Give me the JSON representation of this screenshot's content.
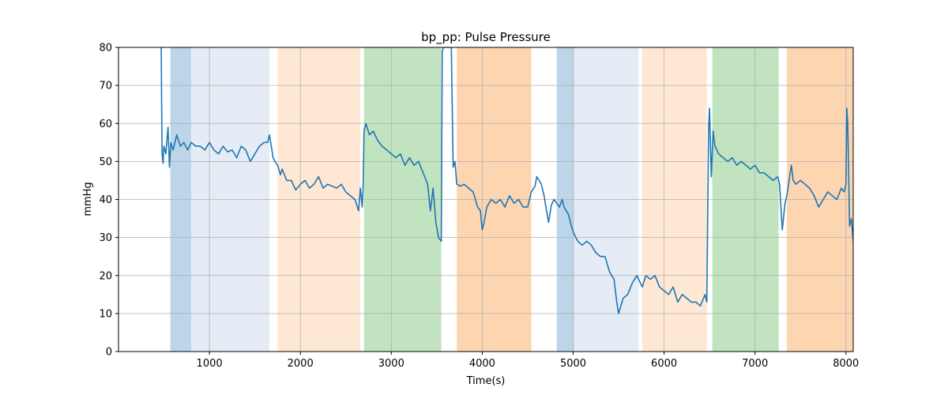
{
  "chart_data": {
    "type": "line",
    "title": "bp_pp: Pulse Pressure",
    "xlabel": "Time(s)",
    "ylabel": "mmHg",
    "xlim": [
      0,
      8080
    ],
    "ylim": [
      0,
      80
    ],
    "xticks": [
      1000,
      2000,
      3000,
      4000,
      5000,
      6000,
      7000,
      8000
    ],
    "yticks": [
      0,
      10,
      20,
      30,
      40,
      50,
      60,
      70,
      80
    ],
    "grid": true,
    "colors": {
      "line": "#1f77b4",
      "grid": "#b0b0b0",
      "band_dark_blue": "#bcd5e9",
      "band_light_blue": "#e5ecf6",
      "band_light_orange": "#fee8d3",
      "band_green": "#c1e3bf",
      "band_orange": "#fdd5b0"
    },
    "bands": [
      {
        "x0": 570,
        "x1": 800,
        "color": "band_dark_blue"
      },
      {
        "x0": 800,
        "x1": 1660,
        "color": "band_light_blue"
      },
      {
        "x0": 1750,
        "x1": 2660,
        "color": "band_light_orange"
      },
      {
        "x0": 2700,
        "x1": 3550,
        "color": "band_green"
      },
      {
        "x0": 3720,
        "x1": 4540,
        "color": "band_orange"
      },
      {
        "x0": 4820,
        "x1": 5010,
        "color": "band_dark_blue"
      },
      {
        "x0": 5010,
        "x1": 5720,
        "color": "band_light_blue"
      },
      {
        "x0": 5760,
        "x1": 6470,
        "color": "band_light_orange"
      },
      {
        "x0": 6530,
        "x1": 7260,
        "color": "band_green"
      },
      {
        "x0": 7350,
        "x1": 8080,
        "color": "band_orange"
      }
    ],
    "series": [
      {
        "values": [
          [
            470,
            80
          ],
          [
            475,
            62
          ],
          [
            480,
            52
          ],
          [
            490,
            49.5
          ],
          [
            500,
            54
          ],
          [
            520,
            52
          ],
          [
            545,
            59
          ],
          [
            560,
            48.5
          ],
          [
            575,
            55
          ],
          [
            600,
            53
          ],
          [
            640,
            57
          ],
          [
            680,
            54
          ],
          [
            720,
            55
          ],
          [
            760,
            53
          ],
          [
            800,
            55
          ],
          [
            850,
            54
          ],
          [
            900,
            54
          ],
          [
            950,
            53
          ],
          [
            1000,
            55
          ],
          [
            1050,
            53
          ],
          [
            1100,
            52
          ],
          [
            1150,
            54
          ],
          [
            1200,
            52.5
          ],
          [
            1250,
            53
          ],
          [
            1300,
            51
          ],
          [
            1350,
            54
          ],
          [
            1400,
            53
          ],
          [
            1450,
            50
          ],
          [
            1500,
            52
          ],
          [
            1550,
            54
          ],
          [
            1600,
            55
          ],
          [
            1640,
            55
          ],
          [
            1660,
            57
          ],
          [
            1680,
            54
          ],
          [
            1700,
            51
          ],
          [
            1720,
            50
          ],
          [
            1750,
            49
          ],
          [
            1780,
            46.5
          ],
          [
            1800,
            48
          ],
          [
            1850,
            45
          ],
          [
            1900,
            45
          ],
          [
            1950,
            42.5
          ],
          [
            2000,
            44
          ],
          [
            2050,
            45
          ],
          [
            2100,
            43
          ],
          [
            2150,
            44
          ],
          [
            2200,
            46
          ],
          [
            2250,
            43
          ],
          [
            2300,
            44
          ],
          [
            2350,
            43.5
          ],
          [
            2400,
            43
          ],
          [
            2450,
            44
          ],
          [
            2500,
            42
          ],
          [
            2550,
            41
          ],
          [
            2600,
            40
          ],
          [
            2640,
            37
          ],
          [
            2660,
            43
          ],
          [
            2680,
            38
          ],
          [
            2690,
            43
          ],
          [
            2700,
            58
          ],
          [
            2720,
            60
          ],
          [
            2760,
            57
          ],
          [
            2800,
            58
          ],
          [
            2850,
            55.5
          ],
          [
            2900,
            54
          ],
          [
            2950,
            53
          ],
          [
            3000,
            52
          ],
          [
            3050,
            51
          ],
          [
            3100,
            52
          ],
          [
            3150,
            49
          ],
          [
            3200,
            51
          ],
          [
            3250,
            49
          ],
          [
            3300,
            50
          ],
          [
            3350,
            47
          ],
          [
            3400,
            44
          ],
          [
            3430,
            37
          ],
          [
            3460,
            43
          ],
          [
            3490,
            34
          ],
          [
            3520,
            30
          ],
          [
            3550,
            29
          ],
          [
            3560,
            79
          ],
          [
            3575,
            80
          ],
          [
            3660,
            80
          ],
          [
            3680,
            48.5
          ],
          [
            3700,
            50
          ],
          [
            3720,
            44
          ],
          [
            3760,
            43.5
          ],
          [
            3800,
            44
          ],
          [
            3850,
            43
          ],
          [
            3900,
            42
          ],
          [
            3950,
            38
          ],
          [
            3980,
            37
          ],
          [
            4000,
            32
          ],
          [
            4020,
            34
          ],
          [
            4050,
            38
          ],
          [
            4100,
            40
          ],
          [
            4150,
            39
          ],
          [
            4200,
            40
          ],
          [
            4250,
            38
          ],
          [
            4300,
            41
          ],
          [
            4350,
            39
          ],
          [
            4400,
            40
          ],
          [
            4450,
            38
          ],
          [
            4500,
            38
          ],
          [
            4540,
            42
          ],
          [
            4580,
            43.5
          ],
          [
            4600,
            46
          ],
          [
            4650,
            44
          ],
          [
            4680,
            41
          ],
          [
            4700,
            38
          ],
          [
            4730,
            34
          ],
          [
            4760,
            38.5
          ],
          [
            4790,
            40
          ],
          [
            4820,
            39
          ],
          [
            4850,
            38
          ],
          [
            4880,
            40
          ],
          [
            4900,
            38
          ],
          [
            4950,
            36
          ],
          [
            4980,
            33
          ],
          [
            5010,
            31
          ],
          [
            5050,
            29
          ],
          [
            5100,
            28
          ],
          [
            5150,
            29
          ],
          [
            5200,
            28
          ],
          [
            5250,
            26
          ],
          [
            5300,
            25
          ],
          [
            5350,
            25
          ],
          [
            5400,
            21
          ],
          [
            5450,
            19
          ],
          [
            5480,
            13
          ],
          [
            5500,
            10
          ],
          [
            5550,
            14
          ],
          [
            5600,
            15
          ],
          [
            5650,
            18
          ],
          [
            5700,
            20
          ],
          [
            5720,
            19
          ],
          [
            5760,
            17
          ],
          [
            5800,
            20
          ],
          [
            5850,
            19
          ],
          [
            5900,
            20
          ],
          [
            5950,
            17
          ],
          [
            6000,
            16
          ],
          [
            6050,
            15
          ],
          [
            6100,
            17
          ],
          [
            6150,
            13
          ],
          [
            6200,
            15
          ],
          [
            6250,
            14
          ],
          [
            6300,
            13
          ],
          [
            6350,
            13
          ],
          [
            6400,
            12
          ],
          [
            6450,
            15
          ],
          [
            6470,
            13
          ],
          [
            6490,
            59
          ],
          [
            6500,
            64
          ],
          [
            6520,
            46
          ],
          [
            6540,
            58
          ],
          [
            6560,
            54
          ],
          [
            6600,
            52
          ],
          [
            6650,
            51
          ],
          [
            6700,
            50
          ],
          [
            6750,
            51
          ],
          [
            6800,
            49
          ],
          [
            6850,
            50
          ],
          [
            6900,
            49
          ],
          [
            6950,
            48
          ],
          [
            7000,
            49
          ],
          [
            7050,
            47
          ],
          [
            7100,
            47
          ],
          [
            7150,
            46
          ],
          [
            7200,
            45
          ],
          [
            7250,
            46
          ],
          [
            7270,
            44
          ],
          [
            7300,
            32
          ],
          [
            7330,
            39
          ],
          [
            7350,
            41
          ],
          [
            7400,
            49
          ],
          [
            7420,
            45
          ],
          [
            7450,
            44
          ],
          [
            7500,
            45
          ],
          [
            7550,
            44
          ],
          [
            7600,
            43
          ],
          [
            7650,
            41
          ],
          [
            7700,
            38
          ],
          [
            7750,
            40
          ],
          [
            7800,
            42
          ],
          [
            7850,
            41
          ],
          [
            7900,
            40
          ],
          [
            7950,
            43
          ],
          [
            7980,
            42
          ],
          [
            8000,
            44
          ],
          [
            8010,
            64
          ],
          [
            8020,
            60
          ],
          [
            8040,
            33
          ],
          [
            8060,
            35
          ],
          [
            8080,
            29
          ]
        ]
      }
    ]
  }
}
